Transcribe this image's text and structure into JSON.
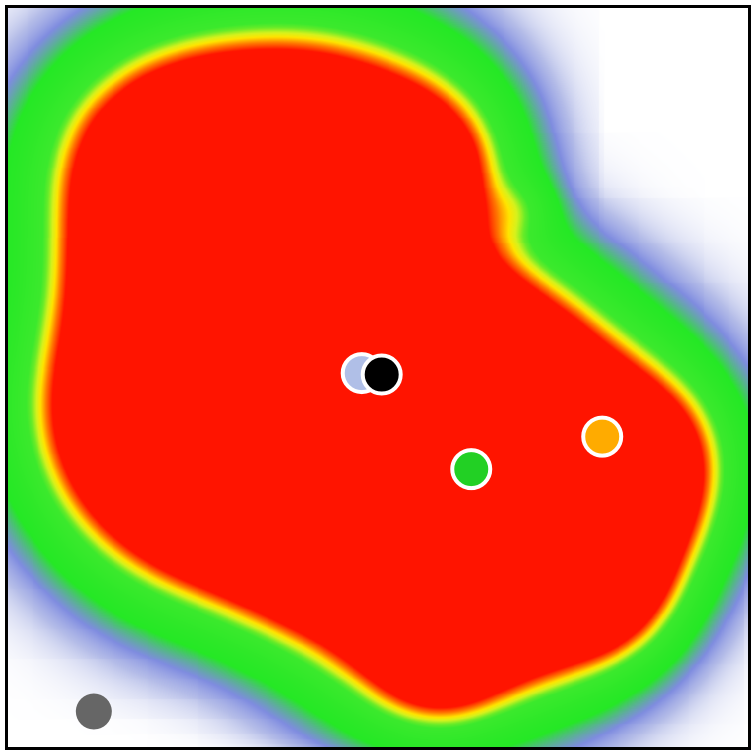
{
  "chart_data": {
    "type": "heatmap",
    "title": "",
    "xlabel": "",
    "ylabel": "",
    "xlim": [
      0,
      100
    ],
    "ylim": [
      0,
      100
    ],
    "grid": false,
    "legend": "none",
    "colormap": [
      "#ffffff",
      "#b4bce8",
      "#7f8ce0",
      "#25e825",
      "#3ce92d",
      "#d6f21d",
      "#ffe500",
      "#ff7a00",
      "#ff1400"
    ],
    "colormap_stops": [
      0,
      0.06,
      0.12,
      0.26,
      0.52,
      0.66,
      0.74,
      0.86,
      1.0
    ],
    "hotspots": [
      {
        "x": 25,
        "y": 77,
        "weight": 1.0
      },
      {
        "x": 27,
        "y": 76,
        "weight": 0.8
      },
      {
        "x": 27,
        "y": 66,
        "weight": 1.0
      },
      {
        "x": 28,
        "y": 64,
        "weight": 0.9
      },
      {
        "x": 49,
        "y": 78,
        "weight": 0.95
      },
      {
        "x": 48,
        "y": 76,
        "weight": 0.75
      },
      {
        "x": 17,
        "y": 68,
        "weight": 0.7
      },
      {
        "x": 32,
        "y": 51,
        "weight": 0.8
      },
      {
        "x": 53,
        "y": 41,
        "weight": 0.7
      },
      {
        "x": 28,
        "y": 35,
        "weight": 0.7
      },
      {
        "x": 68,
        "y": 51,
        "weight": 0.6
      },
      {
        "x": 81,
        "y": 42,
        "weight": 1.0
      },
      {
        "x": 78,
        "y": 38,
        "weight": 0.9
      },
      {
        "x": 57,
        "y": 22,
        "weight": 0.6
      },
      {
        "x": 70,
        "y": 21,
        "weight": 0.6
      },
      {
        "x": 65,
        "y": 38,
        "weight": 0.6
      },
      {
        "x": 14,
        "y": 42,
        "weight": 0.4
      },
      {
        "x": 47,
        "y": 34,
        "weight": 0.45
      }
    ],
    "markers": [
      {
        "x": 47.8,
        "y": 50.6,
        "color": "#b0bfe7",
        "stroke": "#ffffff"
      },
      {
        "x": 50.5,
        "y": 50.4,
        "color": "#000000",
        "stroke": "#ffffff"
      },
      {
        "x": 62.6,
        "y": 37.6,
        "color": "#22d024",
        "stroke": "#ffffff"
      },
      {
        "x": 80.3,
        "y": 42.0,
        "color": "#ffab00",
        "stroke": "#ffffff"
      },
      {
        "x": 11.6,
        "y": 4.8,
        "color": "#666666",
        "stroke": "none"
      }
    ]
  }
}
